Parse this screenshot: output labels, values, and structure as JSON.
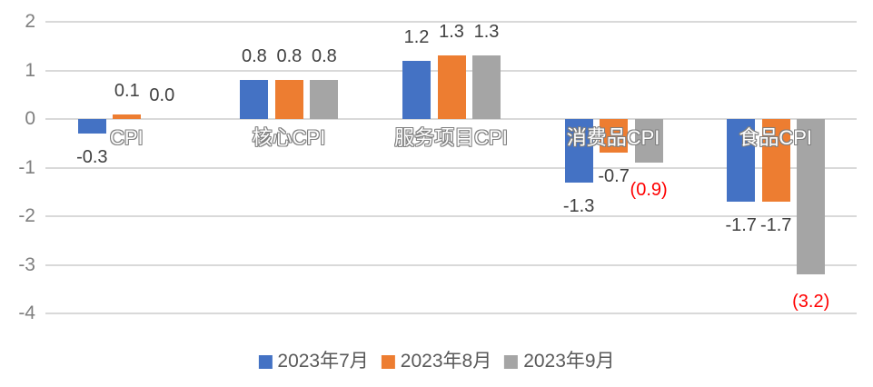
{
  "chart_data": {
    "type": "bar",
    "title": "",
    "categories": [
      "CPI",
      "核心CPI",
      "服务项目CPI",
      "消费品CPI",
      "食品CPI"
    ],
    "series": [
      {
        "name": "2023年7月",
        "color": "#4472C4",
        "values": [
          -0.3,
          0.8,
          1.2,
          -1.3,
          -1.7
        ],
        "labels": [
          "-0.3",
          "0.8",
          "1.2",
          "-1.3",
          "-1.7"
        ],
        "label_red": [
          false,
          false,
          false,
          false,
          false
        ]
      },
      {
        "name": "2023年8月",
        "color": "#ED7D31",
        "values": [
          0.1,
          0.8,
          1.3,
          -0.7,
          -1.7
        ],
        "labels": [
          "0.1",
          "0.8",
          "1.3",
          "-0.7",
          "-1.7"
        ],
        "label_red": [
          false,
          false,
          false,
          false,
          false
        ]
      },
      {
        "name": "2023年9月",
        "color": "#A5A5A5",
        "values": [
          0.0,
          0.8,
          1.3,
          -0.9,
          -3.2
        ],
        "labels": [
          "0.0",
          "0.8",
          "1.3",
          "(0.9)",
          "(3.2)"
        ],
        "label_red": [
          false,
          false,
          false,
          true,
          true
        ]
      }
    ],
    "y_ticks": [
      2,
      1,
      0,
      -1,
      -2,
      -3,
      -4
    ],
    "ylim": [
      -4,
      2
    ],
    "grid": true,
    "legend_position": "bottom",
    "colors": {
      "background": "#FFFFFF",
      "grid": "#D9D9D9",
      "tick_text": "#7F7F7F",
      "data_label": "#404040",
      "data_label_red": "#FF0000",
      "category_outline": "#7F7F7F",
      "legend_text": "#595959"
    }
  }
}
